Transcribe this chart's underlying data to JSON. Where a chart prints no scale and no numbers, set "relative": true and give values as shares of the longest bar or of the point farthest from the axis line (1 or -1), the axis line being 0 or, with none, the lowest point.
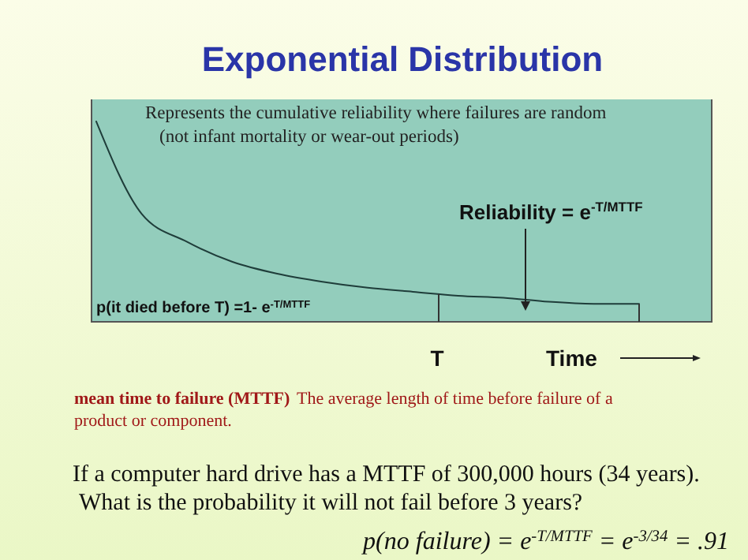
{
  "chart_data": {
    "type": "line",
    "title": "Exponential Distribution",
    "relative": true,
    "xlabel": "Time",
    "categories": [
      null,
      null,
      null,
      null,
      null,
      null,
      null,
      null,
      null,
      null,
      null,
      null,
      null
    ],
    "series": [
      {
        "color": "#1f3d3a",
        "values": [
          1,
          0.54,
          0.4,
          0.3,
          0.24,
          0.2,
          0.17,
          0.15,
          0.13,
          0.12,
          0.1,
          0.09,
          0.09
        ]
      }
    ],
    "marker": "none",
    "line_style": "solid",
    "annotations": [
      "Represents the cumulative reliability where failures are random",
      "(not infant mortality or wear-out periods)",
      "Reliability = e$^{-T/MTTF}$",
      "p(it died before T) =1- e$^{-T/MTTF}$",
      "T",
      "mean time to failure (MTTF)",
      "The average length of time before failure of a",
      "product or component.",
      "If a computer hard drive has a MTTF of 300,000 hours (34 years).",
      "What is the probability it will not fail before 3 years?",
      "p(no failure) = e$^{-T/MTTF}$ = e$^{-3/34}$ = .91"
    ]
  }
}
